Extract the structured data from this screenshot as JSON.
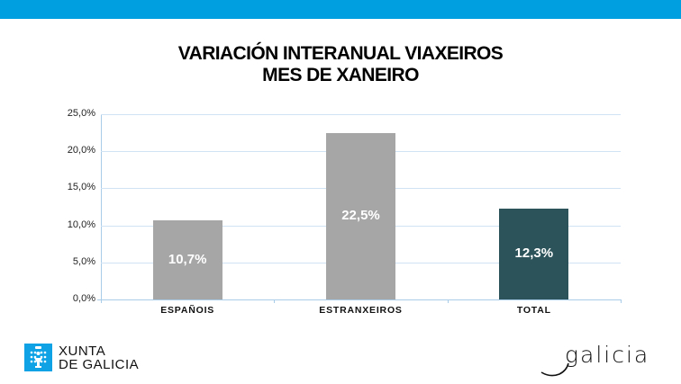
{
  "header": {
    "bar_color": "#009fe0"
  },
  "title": {
    "line1": "VARIACIÓN INTERANUAL VIAXEIROS",
    "line2": "MES DE XANEIRO"
  },
  "chart_data": {
    "type": "bar",
    "title": "VARIACIÓN INTERANUAL VIAXEIROS MES DE XANEIRO",
    "categories": [
      "ESPAÑOIS",
      "ESTRANXEIROS",
      "TOTAL"
    ],
    "values": [
      10.7,
      22.5,
      12.3
    ],
    "value_labels": [
      "10,7%",
      "22,5%",
      "12,3%"
    ],
    "colors": [
      "#a6a6a6",
      "#a6a6a6",
      "#2b5359"
    ],
    "xlabel": "",
    "ylabel": "",
    "ylim": [
      0,
      25
    ],
    "yticks": [
      "0,0%",
      "5,0%",
      "10,0%",
      "15,0%",
      "20,0%",
      "25,0%"
    ],
    "grid": true,
    "legend": "none"
  },
  "footer": {
    "left_logo": {
      "line1": "XUNTA",
      "line2": "DE GALICIA",
      "icon": "xunta-crest-icon"
    },
    "right_logo": {
      "text": "galicia"
    }
  }
}
